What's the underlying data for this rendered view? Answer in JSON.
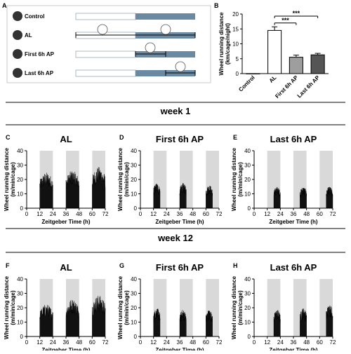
{
  "panel_letters": [
    "A",
    "B",
    "C",
    "D",
    "E",
    "F",
    "G",
    "H"
  ],
  "schedule": {
    "groups": [
      "Control",
      "AL",
      "First 6h AP",
      "Last 6h AP"
    ],
    "colors": {
      "light": "#ffffff",
      "dark": "#6a8aa3",
      "outline": "#9aa8b4"
    }
  },
  "week_titles": [
    "week 1",
    "week 12"
  ],
  "chart_data": [
    {
      "type": "bar",
      "panel": "B",
      "categories": [
        "Control",
        "AL",
        "First 6h AP",
        "Last 6h AP"
      ],
      "values": [
        0,
        14.5,
        5.5,
        6.3
      ],
      "errors": [
        0,
        1.2,
        0.7,
        0.5
      ],
      "bar_colors": [
        "#ffffff",
        "#ffffff",
        "#9e9e9e",
        "#555555"
      ],
      "ylabel": "Wheel running distance (km/cage/night)",
      "ylim": [
        0,
        20
      ],
      "yticks": [
        0,
        5,
        10,
        15,
        20
      ],
      "significance": [
        {
          "from": "AL",
          "to": "First 6h AP",
          "label": "***"
        },
        {
          "from": "AL",
          "to": "Last 6h AP",
          "label": "***"
        }
      ]
    },
    {
      "type": "area",
      "panel": "C",
      "title": "AL",
      "week": "week 1",
      "xlabel": "Zeitgeber Time (h)",
      "ylabel": "Wheel running distance (m/min/cage)",
      "xlim": [
        0,
        72
      ],
      "ylim": [
        0,
        40
      ],
      "xticks": [
        0,
        12,
        24,
        36,
        48,
        60,
        72
      ],
      "yticks": [
        0,
        10,
        20,
        30,
        40
      ],
      "dark_periods": [
        [
          12,
          24
        ],
        [
          36,
          48
        ],
        [
          60,
          72
        ]
      ],
      "activity": [
        {
          "start": 12,
          "end": 24,
          "level": 20
        },
        {
          "start": 36,
          "end": 48,
          "level": 21
        },
        {
          "start": 60,
          "end": 72,
          "level": 23
        }
      ]
    },
    {
      "type": "area",
      "panel": "D",
      "title": "First 6h AP",
      "week": "week 1",
      "xlabel": "Zeitgeber Time (h)",
      "ylabel": "Wheel running distance (m/min/cage)",
      "xlim": [
        0,
        72
      ],
      "ylim": [
        0,
        40
      ],
      "xticks": [
        0,
        12,
        24,
        36,
        48,
        60,
        72
      ],
      "yticks": [
        0,
        10,
        20,
        30,
        40
      ],
      "dark_periods": [
        [
          12,
          24
        ],
        [
          36,
          48
        ],
        [
          60,
          72
        ]
      ],
      "activity": [
        {
          "start": 12,
          "end": 18,
          "level": 14
        },
        {
          "start": 36,
          "end": 42,
          "level": 14
        },
        {
          "start": 60,
          "end": 66,
          "level": 13
        }
      ]
    },
    {
      "type": "area",
      "panel": "E",
      "title": "Last 6h AP",
      "week": "week 1",
      "xlabel": "Zeitgeber Time (h)",
      "ylabel": "Wheel running distance (m/min/cage)",
      "xlim": [
        0,
        72
      ],
      "ylim": [
        0,
        40
      ],
      "xticks": [
        0,
        12,
        24,
        36,
        48,
        60,
        72
      ],
      "yticks": [
        0,
        10,
        20,
        30,
        40
      ],
      "dark_periods": [
        [
          12,
          24
        ],
        [
          36,
          48
        ],
        [
          60,
          72
        ]
      ],
      "activity": [
        {
          "start": 18,
          "end": 24,
          "level": 12
        },
        {
          "start": 42,
          "end": 48,
          "level": 12
        },
        {
          "start": 66,
          "end": 72,
          "level": 12
        }
      ]
    },
    {
      "type": "area",
      "panel": "F",
      "title": "AL",
      "week": "week 12",
      "xlabel": "Zeitgeber Time (h)",
      "ylabel": "Wheel running distance (m/min/cage)",
      "xlim": [
        0,
        72
      ],
      "ylim": [
        0,
        40
      ],
      "xticks": [
        0,
        12,
        24,
        36,
        48,
        60,
        72
      ],
      "yticks": [
        0,
        10,
        20,
        30,
        40
      ],
      "dark_periods": [
        [
          12,
          24
        ],
        [
          36,
          48
        ],
        [
          60,
          72
        ]
      ],
      "activity": [
        {
          "start": 12,
          "end": 24,
          "level": 18
        },
        {
          "start": 36,
          "end": 48,
          "level": 21
        },
        {
          "start": 60,
          "end": 72,
          "level": 23
        }
      ]
    },
    {
      "type": "area",
      "panel": "G",
      "title": "First 6h AP",
      "week": "week 12",
      "xlabel": "Zeitgeber Time (h)",
      "ylabel": "Wheel running distance (m/min/cage)",
      "xlim": [
        0,
        72
      ],
      "ylim": [
        0,
        40
      ],
      "xticks": [
        0,
        12,
        24,
        36,
        48,
        60,
        72
      ],
      "yticks": [
        0,
        10,
        20,
        30,
        40
      ],
      "dark_periods": [
        [
          12,
          24
        ],
        [
          36,
          48
        ],
        [
          60,
          72
        ]
      ],
      "activity": [
        {
          "start": 12,
          "end": 18,
          "level": 16
        },
        {
          "start": 36,
          "end": 42,
          "level": 15
        },
        {
          "start": 60,
          "end": 66,
          "level": 15
        }
      ]
    },
    {
      "type": "area",
      "panel": "H",
      "title": "Last 6h AP",
      "week": "week 12",
      "xlabel": "Zeitgeber Time (h)",
      "ylabel": "Wheel running distance (m/min/cage)",
      "xlim": [
        0,
        72
      ],
      "ylim": [
        0,
        40
      ],
      "xticks": [
        0,
        12,
        24,
        36,
        48,
        60,
        72
      ],
      "yticks": [
        0,
        10,
        20,
        30,
        40
      ],
      "dark_periods": [
        [
          12,
          24
        ],
        [
          36,
          48
        ],
        [
          60,
          72
        ]
      ],
      "activity": [
        {
          "start": 18,
          "end": 24,
          "level": 15
        },
        {
          "start": 42,
          "end": 48,
          "level": 16
        },
        {
          "start": 66,
          "end": 72,
          "level": 18
        }
      ]
    }
  ]
}
